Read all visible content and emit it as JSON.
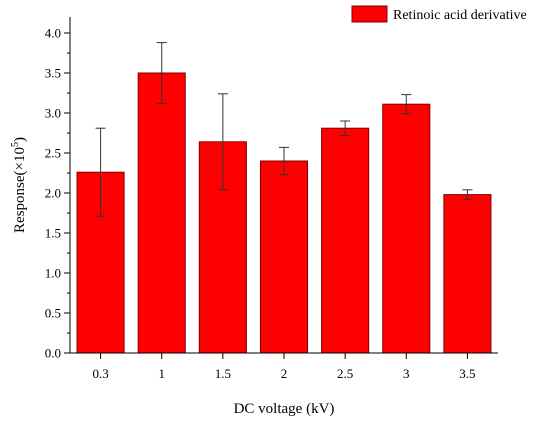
{
  "chart_data": {
    "type": "bar",
    "categories": [
      "0.3",
      "1",
      "1.5",
      "2",
      "2.5",
      "3",
      "3.5"
    ],
    "series": [
      {
        "name": "Retinoic acid derivative",
        "values": [
          2.26,
          3.5,
          2.64,
          2.4,
          2.81,
          3.11,
          1.98
        ],
        "error": [
          0.55,
          0.38,
          0.6,
          0.17,
          0.09,
          0.12,
          0.06
        ],
        "color": "#ff0000"
      }
    ],
    "xlabel": "DC voltage (kV)",
    "ylabel": "Response(×10",
    "ylabel_superscript": "5",
    "ylabel_suffix": ")",
    "ylim": [
      0,
      4.2
    ],
    "yticks": [
      "0.0",
      "0.5",
      "1.0",
      "1.5",
      "2.0",
      "2.5",
      "3.0",
      "3.5",
      "4.0"
    ],
    "grid": false,
    "legend_position": "top-right",
    "bar_edge_color": "#800000",
    "axis_color": "#000000"
  }
}
